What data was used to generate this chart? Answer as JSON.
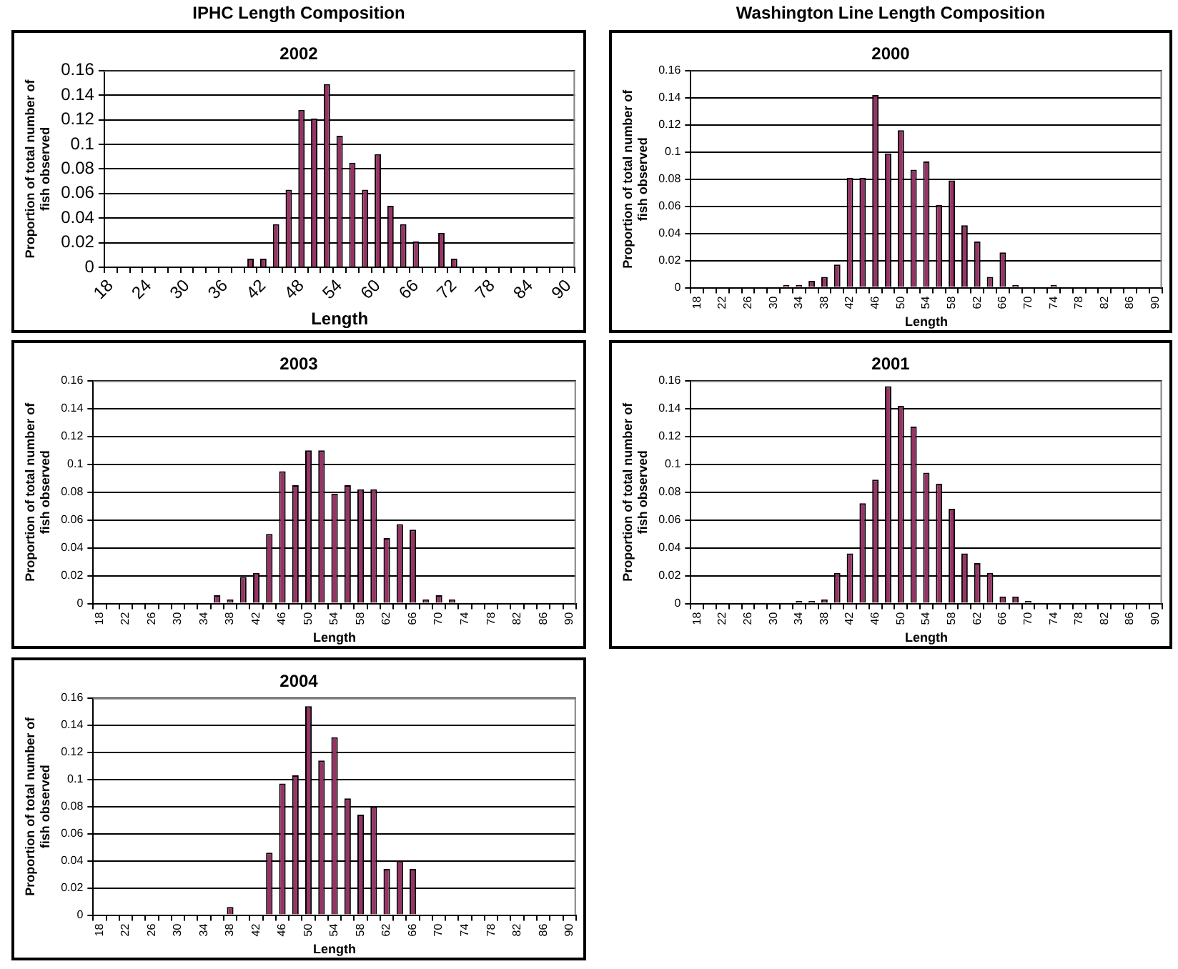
{
  "chart_data": [
    {
      "type": "bar",
      "annotations": [
        "IPHC Length Composition"
      ],
      "title": "2002",
      "xlabel": "Length",
      "ylabel": "Proportion of total number of fish observed",
      "color": "#993366",
      "ylim": [
        0,
        0.16
      ],
      "yticks": [
        0,
        0.02,
        0.04,
        0.06,
        0.08,
        0.1,
        0.12,
        0.14,
        0.16
      ],
      "grid": "y",
      "categories": [
        "18",
        null,
        null,
        "24",
        null,
        null,
        "30",
        null,
        null,
        "36",
        null,
        null,
        "42",
        null,
        null,
        "48",
        null,
        null,
        "54",
        null,
        null,
        "60",
        null,
        null,
        "66",
        null,
        null,
        "72",
        null,
        null,
        "78",
        null,
        null,
        "84",
        null,
        null,
        "90"
      ],
      "values": [
        0,
        0,
        0,
        0,
        0,
        0,
        0,
        0,
        0,
        0,
        0,
        0.007,
        0.007,
        0.035,
        0.063,
        0.128,
        0.121,
        0.149,
        0.107,
        0.085,
        0.063,
        0.092,
        0.05,
        0.035,
        0.021,
        0,
        0.028,
        0.007,
        0,
        0,
        0,
        0,
        0,
        0,
        0,
        0,
        0
      ]
    },
    {
      "type": "bar",
      "annotations": [
        "Washington Line Length Composition"
      ],
      "title": "2000",
      "xlabel": "Length",
      "ylabel": "Proportion of total number of fish observed",
      "color": "#993366",
      "ylim": [
        0,
        0.16
      ],
      "yticks": [
        0,
        0.02,
        0.04,
        0.06,
        0.08,
        0.1,
        0.12,
        0.14,
        0.16
      ],
      "grid": "y",
      "categories": [
        "18",
        null,
        "22",
        null,
        "26",
        null,
        "30",
        null,
        "34",
        null,
        "38",
        null,
        "42",
        null,
        "46",
        null,
        "50",
        null,
        "54",
        null,
        "58",
        null,
        "62",
        null,
        "66",
        null,
        "70",
        null,
        "74",
        null,
        "78",
        null,
        "82",
        null,
        "86",
        null,
        "90"
      ],
      "values": [
        0,
        0,
        0,
        0,
        0,
        0,
        0,
        0.002,
        0.002,
        0.005,
        0.008,
        0.017,
        0.081,
        0.081,
        0.142,
        0.099,
        0.116,
        0.087,
        0.093,
        0.061,
        0.079,
        0.046,
        0.034,
        0.008,
        0.026,
        0.002,
        0,
        0,
        0.002,
        0,
        0,
        0,
        0,
        0,
        0,
        0,
        0
      ]
    },
    {
      "type": "bar",
      "title": "2003",
      "xlabel": "Length",
      "ylabel": "Proportion of total number of fish observed",
      "color": "#993366",
      "ylim": [
        0,
        0.16
      ],
      "yticks": [
        0,
        0.02,
        0.04,
        0.06,
        0.08,
        0.1,
        0.12,
        0.14,
        0.16
      ],
      "grid": "y",
      "categories": [
        "18",
        null,
        "22",
        null,
        "26",
        null,
        "30",
        null,
        "34",
        null,
        "38",
        null,
        "42",
        null,
        "46",
        null,
        "50",
        null,
        "54",
        null,
        "58",
        null,
        "62",
        null,
        "66",
        null,
        "70",
        null,
        "74",
        null,
        "78",
        null,
        "82",
        null,
        "86",
        null,
        "90"
      ],
      "values": [
        0,
        0,
        0,
        0,
        0,
        0,
        0,
        0,
        0,
        0.006,
        0.003,
        0.019,
        0.022,
        0.05,
        0.095,
        0.085,
        0.11,
        0.11,
        0.079,
        0.085,
        0.082,
        0.082,
        0.047,
        0.057,
        0.053,
        0.003,
        0.006,
        0.003,
        0,
        0,
        0,
        0,
        0,
        0,
        0,
        0,
        0
      ]
    },
    {
      "type": "bar",
      "title": "2001",
      "xlabel": "Length",
      "ylabel": "Proportion of total number of fish observed",
      "color": "#993366",
      "ylim": [
        0,
        0.16
      ],
      "yticks": [
        0,
        0.02,
        0.04,
        0.06,
        0.08,
        0.1,
        0.12,
        0.14,
        0.16
      ],
      "grid": "y",
      "categories": [
        "18",
        null,
        "22",
        null,
        "26",
        null,
        "30",
        null,
        "34",
        null,
        "38",
        null,
        "42",
        null,
        "46",
        null,
        "50",
        null,
        "54",
        null,
        "58",
        null,
        "62",
        null,
        "66",
        null,
        "70",
        null,
        "74",
        null,
        "78",
        null,
        "82",
        null,
        "86",
        null,
        "90"
      ],
      "values": [
        0,
        0,
        0,
        0,
        0,
        0,
        0,
        0,
        0.002,
        0.002,
        0.003,
        0.022,
        0.036,
        0.072,
        0.089,
        0.156,
        0.142,
        0.127,
        0.094,
        0.086,
        0.068,
        0.036,
        0.029,
        0.022,
        0.005,
        0.005,
        0.002,
        0,
        0,
        0,
        0,
        0,
        0,
        0,
        0,
        0,
        0
      ]
    },
    {
      "type": "bar",
      "title": "2004",
      "xlabel": "Length",
      "ylabel": "Proportion of total number of fish observed",
      "color": "#993366",
      "ylim": [
        0,
        0.16
      ],
      "yticks": [
        0,
        0.02,
        0.04,
        0.06,
        0.08,
        0.1,
        0.12,
        0.14,
        0.16
      ],
      "grid": "y",
      "categories": [
        "18",
        null,
        "22",
        null,
        "26",
        null,
        "30",
        null,
        "34",
        null,
        "38",
        null,
        "42",
        null,
        "46",
        null,
        "50",
        null,
        "54",
        null,
        "58",
        null,
        "62",
        null,
        "66",
        null,
        "70",
        null,
        "74",
        null,
        "78",
        null,
        "82",
        null,
        "86",
        null,
        "90"
      ],
      "values": [
        0,
        0,
        0,
        0,
        0,
        0,
        0,
        0,
        0,
        0,
        0.006,
        0,
        0,
        0.046,
        0.097,
        0.103,
        0.154,
        0.114,
        0.131,
        0.086,
        0.074,
        0.08,
        0.034,
        0.04,
        0.034,
        0,
        0,
        0,
        0,
        0,
        0,
        0,
        0,
        0,
        0,
        0,
        0
      ]
    }
  ]
}
